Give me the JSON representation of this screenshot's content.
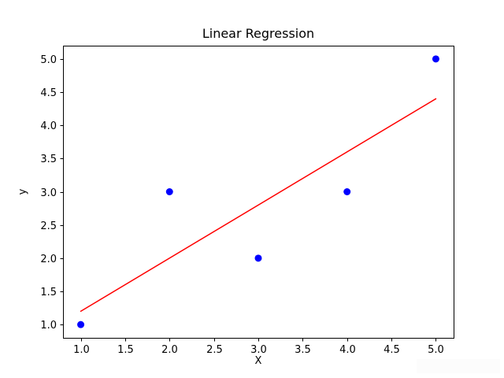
{
  "figure": {
    "background": "#ffffff",
    "spine_color": "#000000",
    "tick_color": "#000000"
  },
  "chart_data": {
    "type": "scatter",
    "title": "Linear Regression",
    "xlabel": "X",
    "ylabel": "y",
    "xlim": [
      0.8,
      5.2
    ],
    "ylim": [
      0.8,
      5.2
    ],
    "x_ticks": [
      1.0,
      1.5,
      2.0,
      2.5,
      3.0,
      3.5,
      4.0,
      4.5,
      5.0
    ],
    "y_ticks": [
      1.0,
      1.5,
      2.0,
      2.5,
      3.0,
      3.5,
      4.0,
      4.5,
      5.0
    ],
    "tick_label_format_decimals": 1,
    "grid": false,
    "legend": "none",
    "series": [
      {
        "name": "data-points",
        "kind": "scatter",
        "color": "#0000ff",
        "marker_radius": 4.5,
        "x": [
          1,
          2,
          3,
          4,
          5
        ],
        "y": [
          1,
          3,
          2,
          3,
          5
        ]
      },
      {
        "name": "regression-line",
        "kind": "line",
        "color": "#ff0000",
        "line_width": 1.5,
        "x": [
          1,
          5
        ],
        "y": [
          1.2,
          4.4
        ]
      }
    ]
  }
}
